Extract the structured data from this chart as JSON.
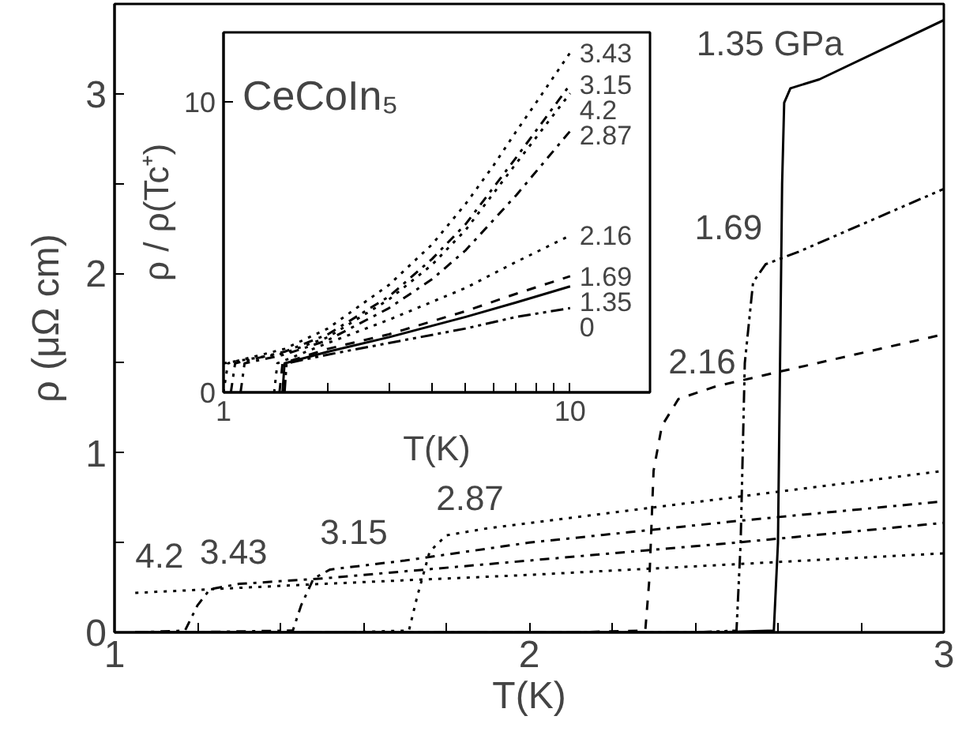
{
  "chart_data": [
    {
      "type": "line",
      "xlabel": "T(K)",
      "ylabel": "ρ (μΩ cm)",
      "xlim": [
        1,
        3
      ],
      "ylim": [
        0,
        3.5
      ],
      "xticks": [
        1,
        {
          "value": 1.2,
          "label": null
        },
        {
          "value": 1.4,
          "label": null
        },
        {
          "value": 1.6,
          "label": null
        },
        {
          "value": 1.8,
          "label": null
        },
        2,
        {
          "value": 2.2,
          "label": null
        },
        {
          "value": 2.4,
          "label": null
        },
        {
          "value": 2.6,
          "label": null
        },
        {
          "value": 2.8,
          "label": null
        },
        3
      ],
      "yticks": [
        0,
        {
          "value": 0.5,
          "label": null
        },
        1,
        {
          "value": 1.5,
          "label": null
        },
        2,
        {
          "value": 2.5,
          "label": null
        },
        3
      ],
      "series": [
        {
          "name": "1.35 GPa",
          "color": "#000000",
          "line_style": "solid",
          "x": [
            1.05,
            2.45,
            2.59,
            2.6,
            2.605,
            2.61,
            2.615,
            2.63,
            2.7,
            3
          ],
          "values": [
            0,
            0,
            0.01,
            0.5,
            1.5,
            2.5,
            2.95,
            3.03,
            3.08,
            3.41
          ]
        },
        {
          "name": "1.69",
          "color": "#000000",
          "line_style": "dashdotdot",
          "x": [
            1.05,
            2.4,
            2.5,
            2.51,
            2.52,
            2.54,
            2.57,
            2.65,
            3
          ],
          "values": [
            0,
            0,
            0.01,
            0.5,
            1.5,
            1.95,
            2.05,
            2.12,
            2.47
          ]
        },
        {
          "name": "2.16",
          "color": "#000000",
          "line_style": "dashed",
          "x": [
            1.05,
            2.1,
            2.28,
            2.29,
            2.3,
            2.32,
            2.36,
            2.45,
            2.6,
            3
          ],
          "values": [
            0,
            0,
            0.01,
            0.3,
            0.9,
            1.15,
            1.3,
            1.37,
            1.45,
            1.66
          ]
        },
        {
          "name": "2.87",
          "color": "#000000",
          "line_style": "dotted",
          "x": [
            1.05,
            1.55,
            1.71,
            1.73,
            1.76,
            1.8,
            1.9,
            3
          ],
          "values": [
            0,
            0,
            0.01,
            0.2,
            0.45,
            0.54,
            0.58,
            0.9
          ]
        },
        {
          "name": "3.15",
          "color": "#000000",
          "line_style": "dashdot",
          "x": [
            1.05,
            1.15,
            1.43,
            1.45,
            1.48,
            1.52,
            1.7,
            2,
            2.5,
            3
          ],
          "values": [
            0,
            0,
            0.01,
            0.15,
            0.3,
            0.35,
            0.4,
            0.5,
            0.62,
            0.73
          ]
        },
        {
          "name": "3.43",
          "color": "#000000",
          "line_style": "dashdot",
          "x": [
            1.05,
            1.17,
            1.2,
            1.23,
            1.3,
            1.5,
            2,
            2.5,
            3
          ],
          "values": [
            0,
            0.01,
            0.15,
            0.24,
            0.27,
            0.3,
            0.4,
            0.5,
            0.61
          ]
        },
        {
          "name": "4.2",
          "color": "#000000",
          "line_style": "dotted",
          "x": [
            1.05,
            1.5,
            2,
            2.5,
            3
          ],
          "values": [
            0.22,
            0.27,
            0.32,
            0.38,
            0.44
          ]
        }
      ]
    },
    {
      "type": "line",
      "xlabel": "T(K)",
      "ylabel": "ρ / ρ(Tc⁺)",
      "log": "x",
      "xlim": [
        1,
        17
      ],
      "ylim": [
        0,
        12.4
      ],
      "xticks": [
        1,
        {
          "value": 2,
          "label": null
        },
        {
          "value": 3,
          "label": null
        },
        {
          "value": 4,
          "label": null
        },
        {
          "value": 5,
          "label": null
        },
        {
          "value": 6,
          "label": null
        },
        {
          "value": 7,
          "label": null
        },
        {
          "value": 8,
          "label": null
        },
        {
          "value": 9,
          "label": null
        },
        10
      ],
      "yticks": [
        0,
        10
      ],
      "series": [
        {
          "name": "3.43",
          "color": "#000000",
          "line_style": "dotted",
          "x": [
            1.0,
            1.03,
            1.5,
            2,
            3,
            4,
            5,
            6,
            7,
            8,
            9,
            10
          ],
          "values": [
            0,
            1.0,
            1.5,
            2.2,
            3.7,
            5.1,
            6.5,
            7.8,
            9.0,
            10.0,
            10.9,
            11.7
          ]
        },
        {
          "name": "3.15",
          "color": "#000000",
          "line_style": "dashdot",
          "x": [
            1.05,
            1.08,
            1.5,
            2,
            3,
            4,
            5,
            7,
            10
          ],
          "values": [
            0,
            1.0,
            1.4,
            2.0,
            3.3,
            4.6,
            5.8,
            8.1,
            10.6
          ]
        },
        {
          "name": "4.2",
          "color": "#000000",
          "line_style": "dotted",
          "x": [
            1.0,
            1.5,
            2,
            3,
            4,
            5,
            7,
            10
          ],
          "values": [
            1.0,
            1.35,
            1.9,
            3.2,
            4.4,
            5.6,
            7.9,
            10.3
          ]
        },
        {
          "name": "2.87",
          "color": "#000000",
          "line_style": "dashdot",
          "x": [
            1.12,
            1.15,
            1.5,
            2,
            3,
            4,
            5,
            7,
            10
          ],
          "values": [
            0,
            1.0,
            1.3,
            1.8,
            2.9,
            3.9,
            4.9,
            6.8,
            9.0
          ]
        },
        {
          "name": "2.16",
          "color": "#000000",
          "line_style": "dotted",
          "x": [
            1.4,
            1.43,
            2,
            3,
            5,
            7,
            10
          ],
          "values": [
            0,
            1.0,
            1.7,
            2.5,
            3.6,
            4.5,
            5.4
          ]
        },
        {
          "name": "1.69",
          "color": "#000000",
          "line_style": "dashed",
          "x": [
            1.45,
            1.48,
            2,
            3,
            5,
            7,
            10
          ],
          "values": [
            0,
            1.0,
            1.5,
            2.0,
            2.8,
            3.4,
            4.0
          ]
        },
        {
          "name": "1.35",
          "color": "#000000",
          "line_style": "solid",
          "x": [
            1.48,
            1.5,
            2,
            3,
            5,
            7,
            10
          ],
          "values": [
            0,
            1.0,
            1.4,
            1.9,
            2.6,
            3.1,
            3.65
          ]
        },
        {
          "name": "0",
          "color": "#000000",
          "line_style": "dashdotdot",
          "x": [
            1.5,
            1.52,
            2,
            3,
            5,
            7,
            10
          ],
          "values": [
            0,
            1.0,
            1.3,
            1.7,
            2.2,
            2.6,
            2.9
          ]
        }
      ],
      "annotations": [
        "CeCoIn₅"
      ]
    }
  ]
}
